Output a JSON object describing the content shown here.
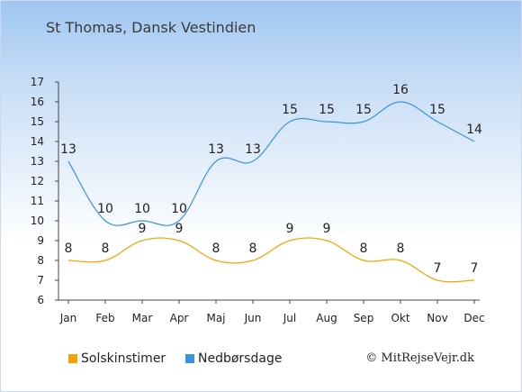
{
  "title": "St Thomas, Dansk Vestindien",
  "credit": "© MitRejseVejr.dk",
  "chart_data": {
    "type": "line",
    "categories": [
      "Jan",
      "Feb",
      "Mar",
      "Apr",
      "Maj",
      "Jun",
      "Jul",
      "Aug",
      "Sep",
      "Okt",
      "Nov",
      "Dec"
    ],
    "yticks": [
      6,
      7,
      8,
      9,
      10,
      11,
      12,
      13,
      14,
      15,
      16,
      17
    ],
    "ylim": [
      6,
      17
    ],
    "grid": false,
    "legend_position": "bottom-left",
    "series": [
      {
        "name": "Solskinstimer",
        "color": "#f5a300",
        "values": [
          8,
          8,
          9,
          9,
          8,
          8,
          9,
          9,
          8,
          8,
          7,
          7
        ]
      },
      {
        "name": "Nedbørsdage",
        "color": "#3a93e0",
        "values": [
          13,
          10,
          10,
          10,
          13,
          13,
          15,
          15,
          15,
          16,
          15,
          14
        ]
      }
    ]
  }
}
